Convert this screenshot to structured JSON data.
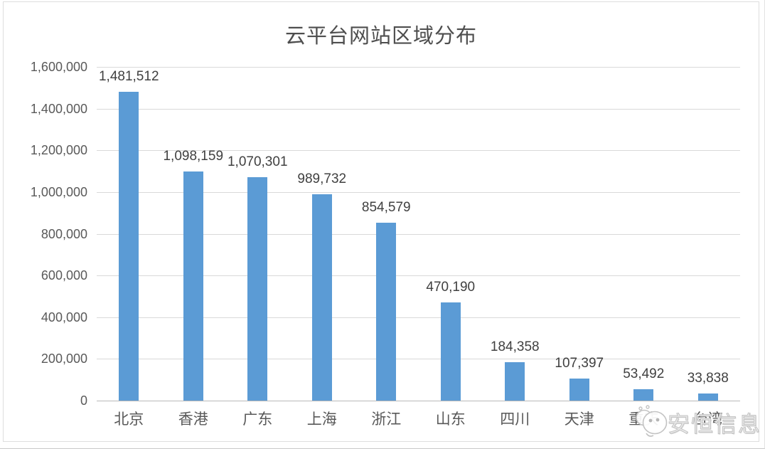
{
  "chart_data": {
    "type": "bar",
    "title": "云平台网站区域分布",
    "categories": [
      "北京",
      "香港",
      "广东",
      "上海",
      "浙江",
      "山东",
      "四川",
      "天津",
      "重庆",
      "台湾"
    ],
    "values": [
      1481512,
      1098159,
      1070301,
      989732,
      854579,
      470190,
      184358,
      107397,
      53492,
      33838
    ],
    "value_labels": [
      "1,481,512",
      "1,098,159",
      "1,070,301",
      "989,732",
      "854,579",
      "470,190",
      "184,358",
      "107,397",
      "53,492",
      "33,838"
    ],
    "xlabel": "",
    "ylabel": "",
    "ylim": [
      0,
      1600000
    ],
    "y_tick_interval": 200000,
    "y_tick_labels": [
      "0",
      "200,000",
      "400,000",
      "600,000",
      "800,000",
      "1,000,000",
      "1,200,000",
      "1,400,000",
      "1,600,000"
    ],
    "grid": true,
    "legend": "none",
    "bar_color": "#5b9bd5"
  },
  "watermark": {
    "text": "安恒信息",
    "logo": "anheng-bubbles-logo",
    "color": "#c3c3c3"
  },
  "colors": {
    "bar": "#5b9bd5",
    "gridline": "#d9d9d9",
    "axis_line": "#b9b9b9",
    "tick_text": "#595959",
    "data_label_text": "#404040",
    "title_text": "#4e4e4e",
    "frame_border": "#dedede",
    "watermark": "#c3c3c3"
  }
}
